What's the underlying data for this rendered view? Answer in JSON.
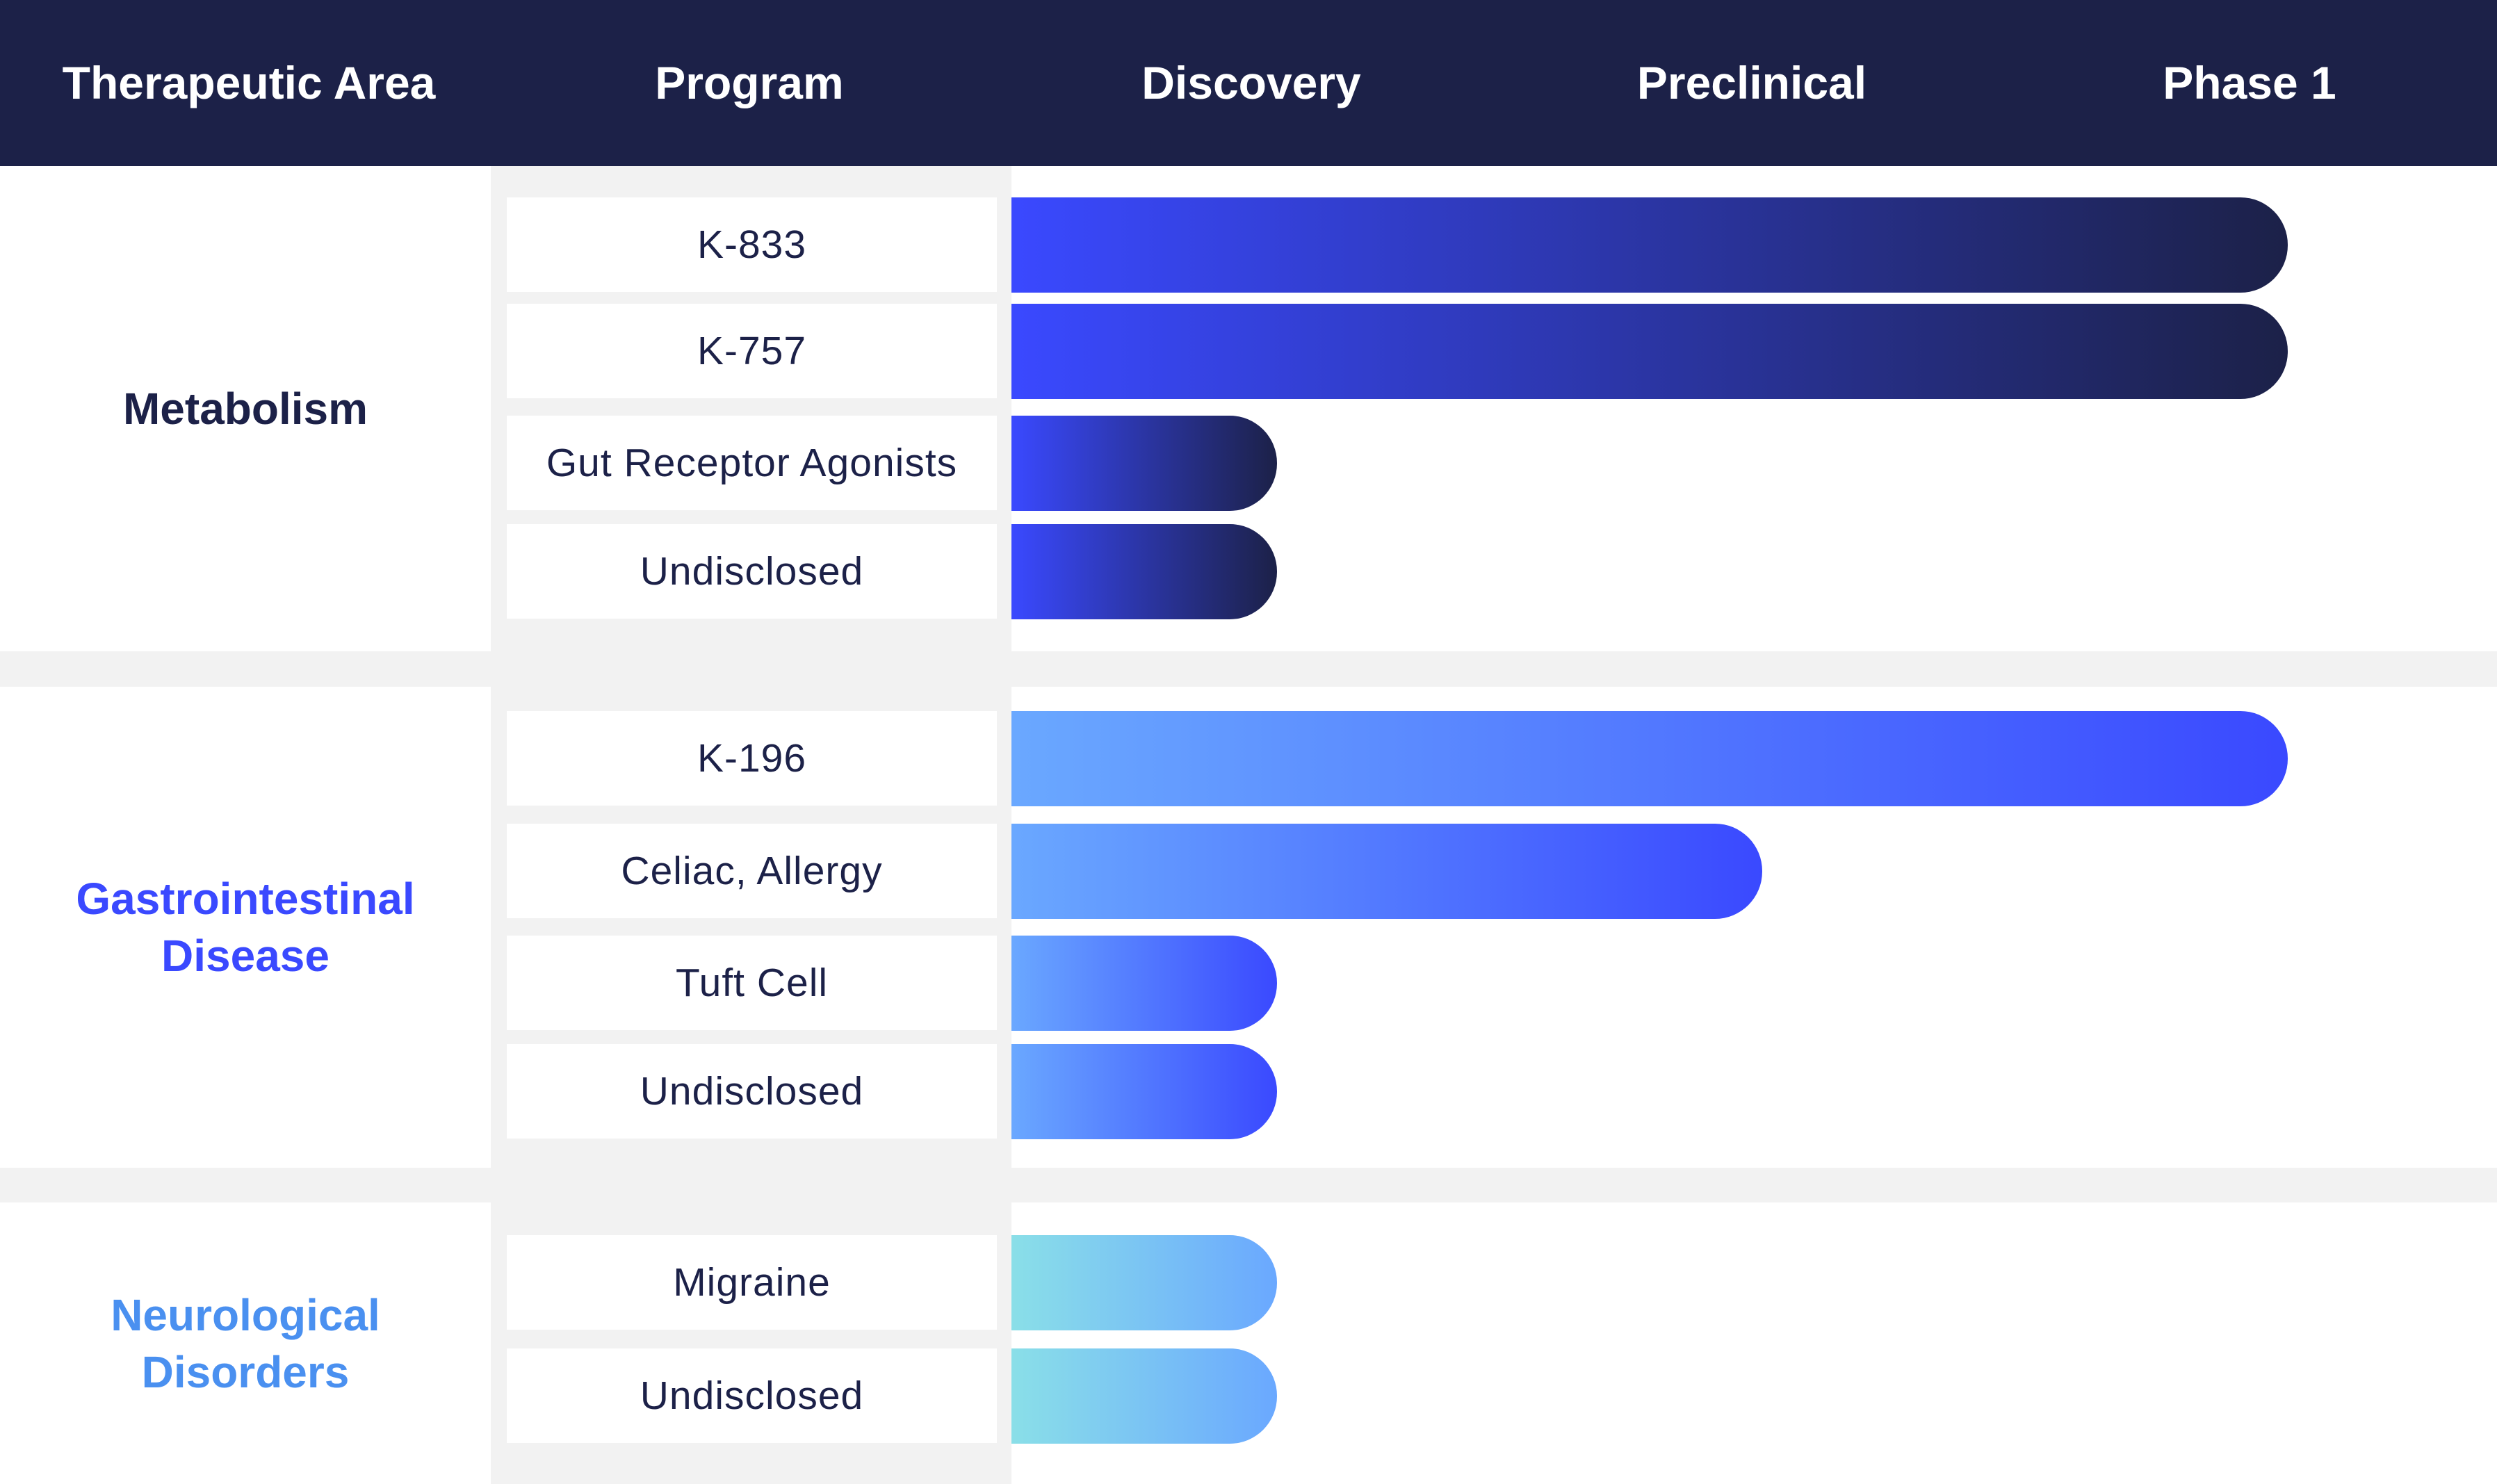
{
  "chart_data": {
    "type": "bar",
    "orientation": "horizontal",
    "stages": [
      "Discovery",
      "Preclinical",
      "Phase 1"
    ],
    "columns": {
      "area": "Therapeutic Area",
      "program": "Program"
    },
    "groups": [
      {
        "area": "Metabolism",
        "area_color": "#1c2148",
        "gradient": [
          "#3a49ff",
          "#1c2148"
        ],
        "programs": [
          {
            "name": "K-833",
            "progress": 2.55
          },
          {
            "name": "K-757",
            "progress": 2.55
          },
          {
            "name": "Gut Receptor Agonists",
            "progress": 0.53
          },
          {
            "name": "Undisclosed",
            "progress": 0.53
          }
        ]
      },
      {
        "area": "Gastrointestinal\nDisease",
        "area_color": "#3a49ff",
        "gradient": [
          "#6aa8ff",
          "#3a49ff"
        ],
        "programs": [
          {
            "name": "K-196",
            "progress": 2.55
          },
          {
            "name": "Celiac, Allergy",
            "progress": 1.5
          },
          {
            "name": "Tuft Cell",
            "progress": 0.53
          },
          {
            "name": "Undisclosed",
            "progress": 0.53
          }
        ]
      },
      {
        "area": "Neurological\nDisorders",
        "area_color": "#4a90f0",
        "gradient": [
          "#8adfe8",
          "#6aa8ff"
        ],
        "programs": [
          {
            "name": "Migraine",
            "progress": 0.53
          },
          {
            "name": "Undisclosed",
            "progress": 0.53
          }
        ]
      }
    ]
  }
}
